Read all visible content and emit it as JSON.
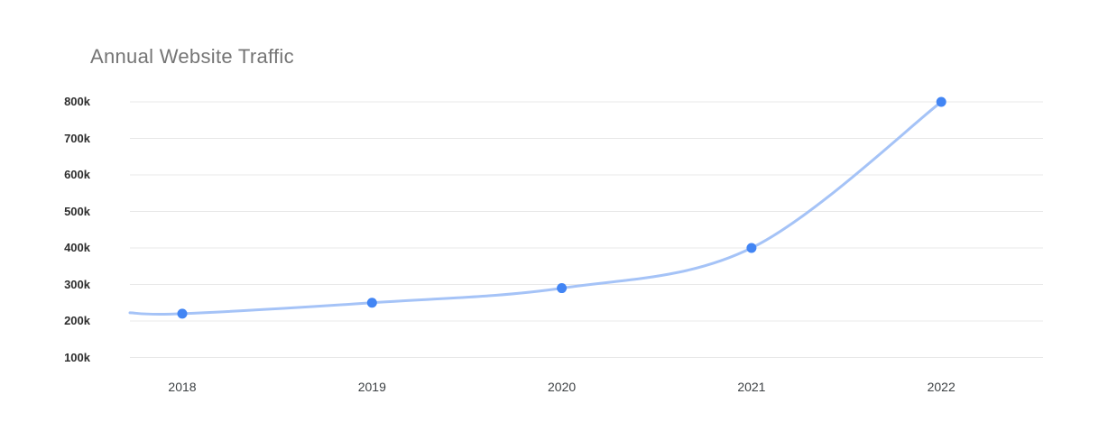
{
  "chart_data": {
    "type": "line",
    "title": "Annual Website Traffic",
    "categories": [
      "2018",
      "2019",
      "2020",
      "2021",
      "2022"
    ],
    "series": [
      {
        "values": [
          220000,
          250000,
          290000,
          400000,
          800000
        ]
      }
    ],
    "y_tick_labels": [
      "800k",
      "700k",
      "600k",
      "500k",
      "400k",
      "300k",
      "200k",
      "100k"
    ],
    "y_tick_values": [
      800000,
      700000,
      600000,
      500000,
      400000,
      300000,
      200000,
      100000
    ],
    "ylim": [
      100000,
      800000
    ],
    "xlabel": "",
    "ylabel": "",
    "grid": "horizontal-only",
    "legend_position": "none",
    "curve": "smooth",
    "markers": "filled-circle"
  },
  "colors": {
    "background": "#ffffff",
    "title_text": "#757575",
    "grid_line": "#e8e8e8",
    "series_line": "#a5c3f7",
    "marker_fill": "#4285f4",
    "y_tick_text": "#2d2d2d",
    "x_tick_text": "#3c4043"
  }
}
